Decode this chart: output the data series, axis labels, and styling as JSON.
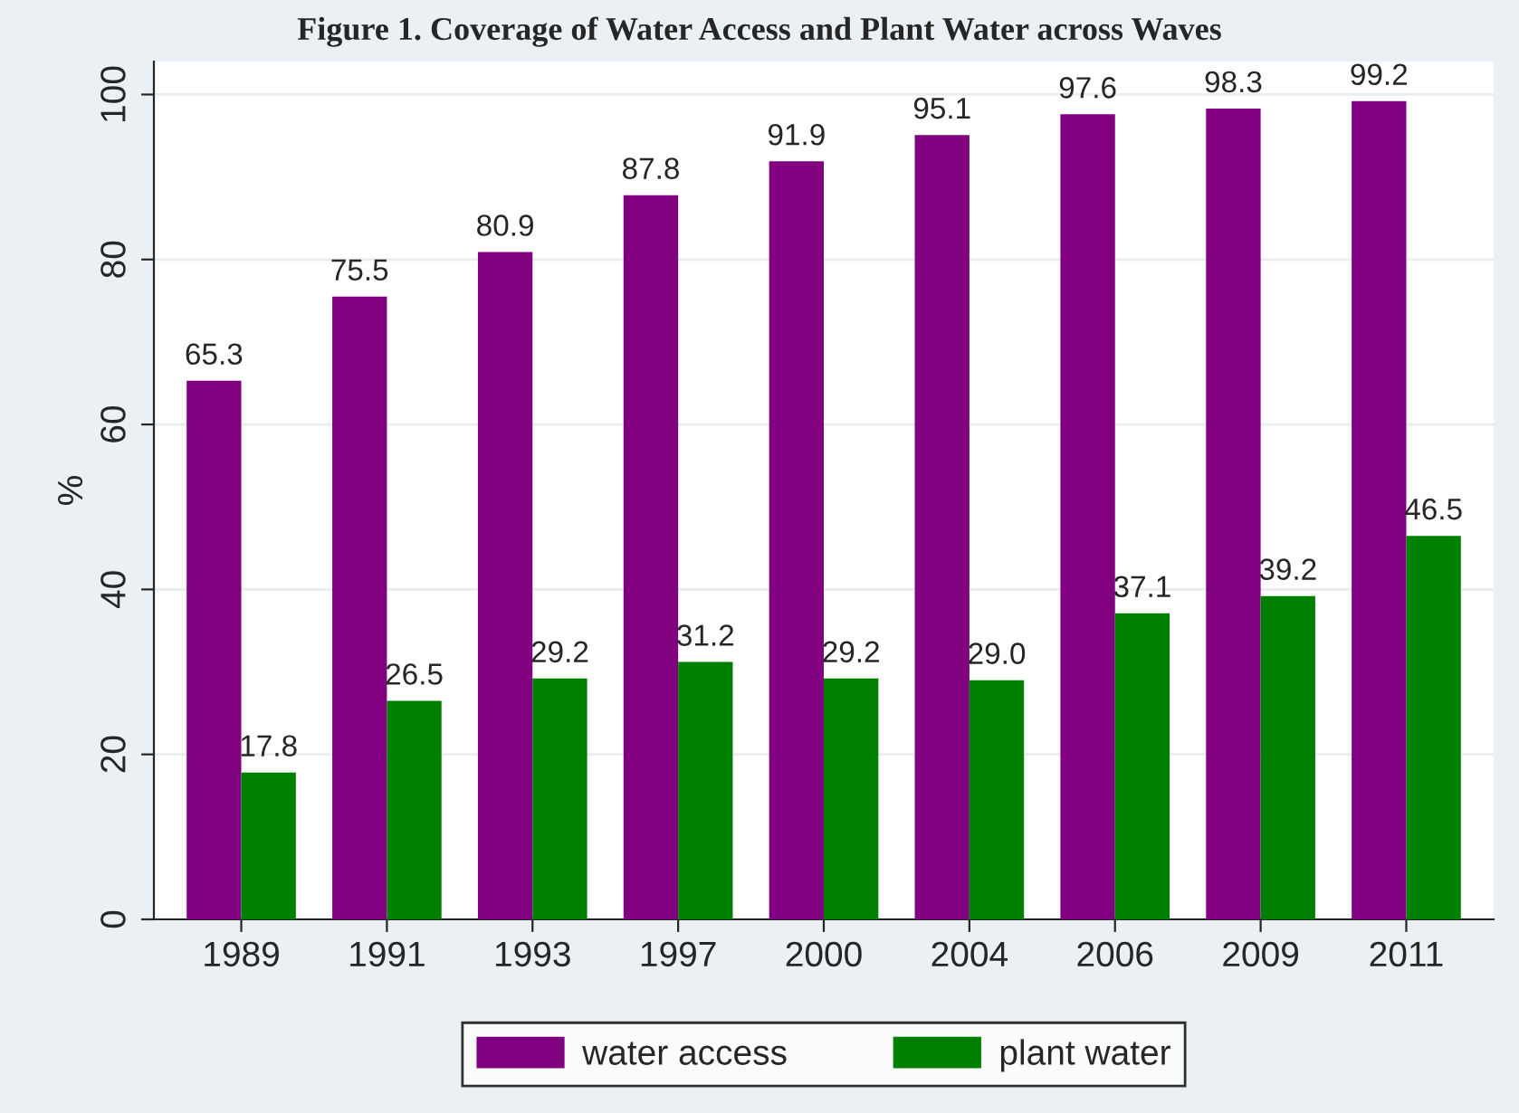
{
  "chart_data": {
    "type": "bar",
    "title": "Figure 1. Coverage of Water Access and Plant Water across Waves",
    "ylabel": "%",
    "categories": [
      "1989",
      "1991",
      "1993",
      "1997",
      "2000",
      "2004",
      "2006",
      "2009",
      "2011"
    ],
    "series": [
      {
        "name": "water access",
        "color": "#800080",
        "values": [
          65.3,
          75.5,
          80.9,
          87.8,
          91.9,
          95.1,
          97.6,
          98.3,
          99.2
        ],
        "value_labels": [
          "65.3",
          "75.5",
          "80.9",
          "87.8",
          "91.9",
          "95.1",
          "97.6",
          "98.3",
          "99.2"
        ]
      },
      {
        "name": "plant water",
        "color": "#008000",
        "values": [
          17.8,
          26.5,
          29.2,
          31.2,
          29.2,
          29.0,
          37.1,
          39.2,
          46.5
        ],
        "value_labels": [
          "17.8",
          "26.5",
          "29.2",
          "31.2",
          "29.2",
          "29.0",
          "37.1",
          "39.2",
          "46.5"
        ]
      }
    ],
    "ylim": [
      0,
      104
    ],
    "yticks": [
      0,
      20,
      40,
      60,
      80,
      100
    ],
    "grid": "y",
    "legend": "bottom"
  }
}
